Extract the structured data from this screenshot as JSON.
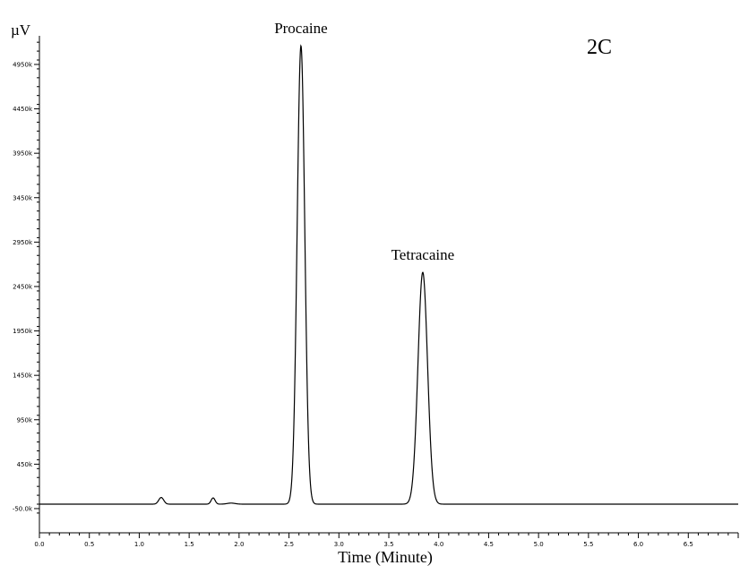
{
  "chart_data": {
    "type": "line",
    "title": "",
    "panel_label": "2C",
    "ylabel": "µV",
    "xlabel": "Time (Minute)",
    "xlim": [
      0.0,
      7.0
    ],
    "ylim": [
      -100000,
      5350000
    ],
    "x_ticks": [
      {
        "v": 0.0,
        "label": "0.0"
      },
      {
        "v": 0.5,
        "label": "0.5"
      },
      {
        "v": 1.0,
        "label": "1.0"
      },
      {
        "v": 1.5,
        "label": "1.5"
      },
      {
        "v": 2.0,
        "label": "2.0"
      },
      {
        "v": 2.5,
        "label": "2.5"
      },
      {
        "v": 3.0,
        "label": "3.0"
      },
      {
        "v": 3.5,
        "label": "3.5"
      },
      {
        "v": 4.0,
        "label": "4.0"
      },
      {
        "v": 4.5,
        "label": "4.5"
      },
      {
        "v": 5.0,
        "label": "5.0"
      },
      {
        "v": 5.5,
        "label": "5.5"
      },
      {
        "v": 6.0,
        "label": "6.0"
      },
      {
        "v": 6.5,
        "label": "6.5"
      }
    ],
    "y_ticks": [
      {
        "v": -50000,
        "label": "-50.0k"
      },
      {
        "v": 450000,
        "label": "450k"
      },
      {
        "v": 950000,
        "label": "950k"
      },
      {
        "v": 1450000,
        "label": "1450k"
      },
      {
        "v": 1950000,
        "label": "1950k"
      },
      {
        "v": 2450000,
        "label": "2450k"
      },
      {
        "v": 2950000,
        "label": "2950k"
      },
      {
        "v": 3450000,
        "label": "3450k"
      },
      {
        "v": 3950000,
        "label": "3950k"
      },
      {
        "v": 4450000,
        "label": "4450k"
      },
      {
        "v": 4950000,
        "label": "4950k"
      }
    ],
    "baseline": 0,
    "peaks": [
      {
        "name": "Procaine",
        "x": 2.62,
        "height": 5160000,
        "width": 0.038,
        "labeled": true
      },
      {
        "name": "Tetracaine",
        "x": 3.84,
        "height": 2610000,
        "width": 0.048,
        "labeled": true
      },
      {
        "name": "",
        "x": 1.22,
        "height": 75000,
        "width": 0.025,
        "labeled": false
      },
      {
        "name": "",
        "x": 1.74,
        "height": 70000,
        "width": 0.02,
        "labeled": false
      },
      {
        "name": "",
        "x": 1.92,
        "height": 12000,
        "width": 0.04,
        "labeled": false
      }
    ],
    "grid": false,
    "legend": "none"
  }
}
